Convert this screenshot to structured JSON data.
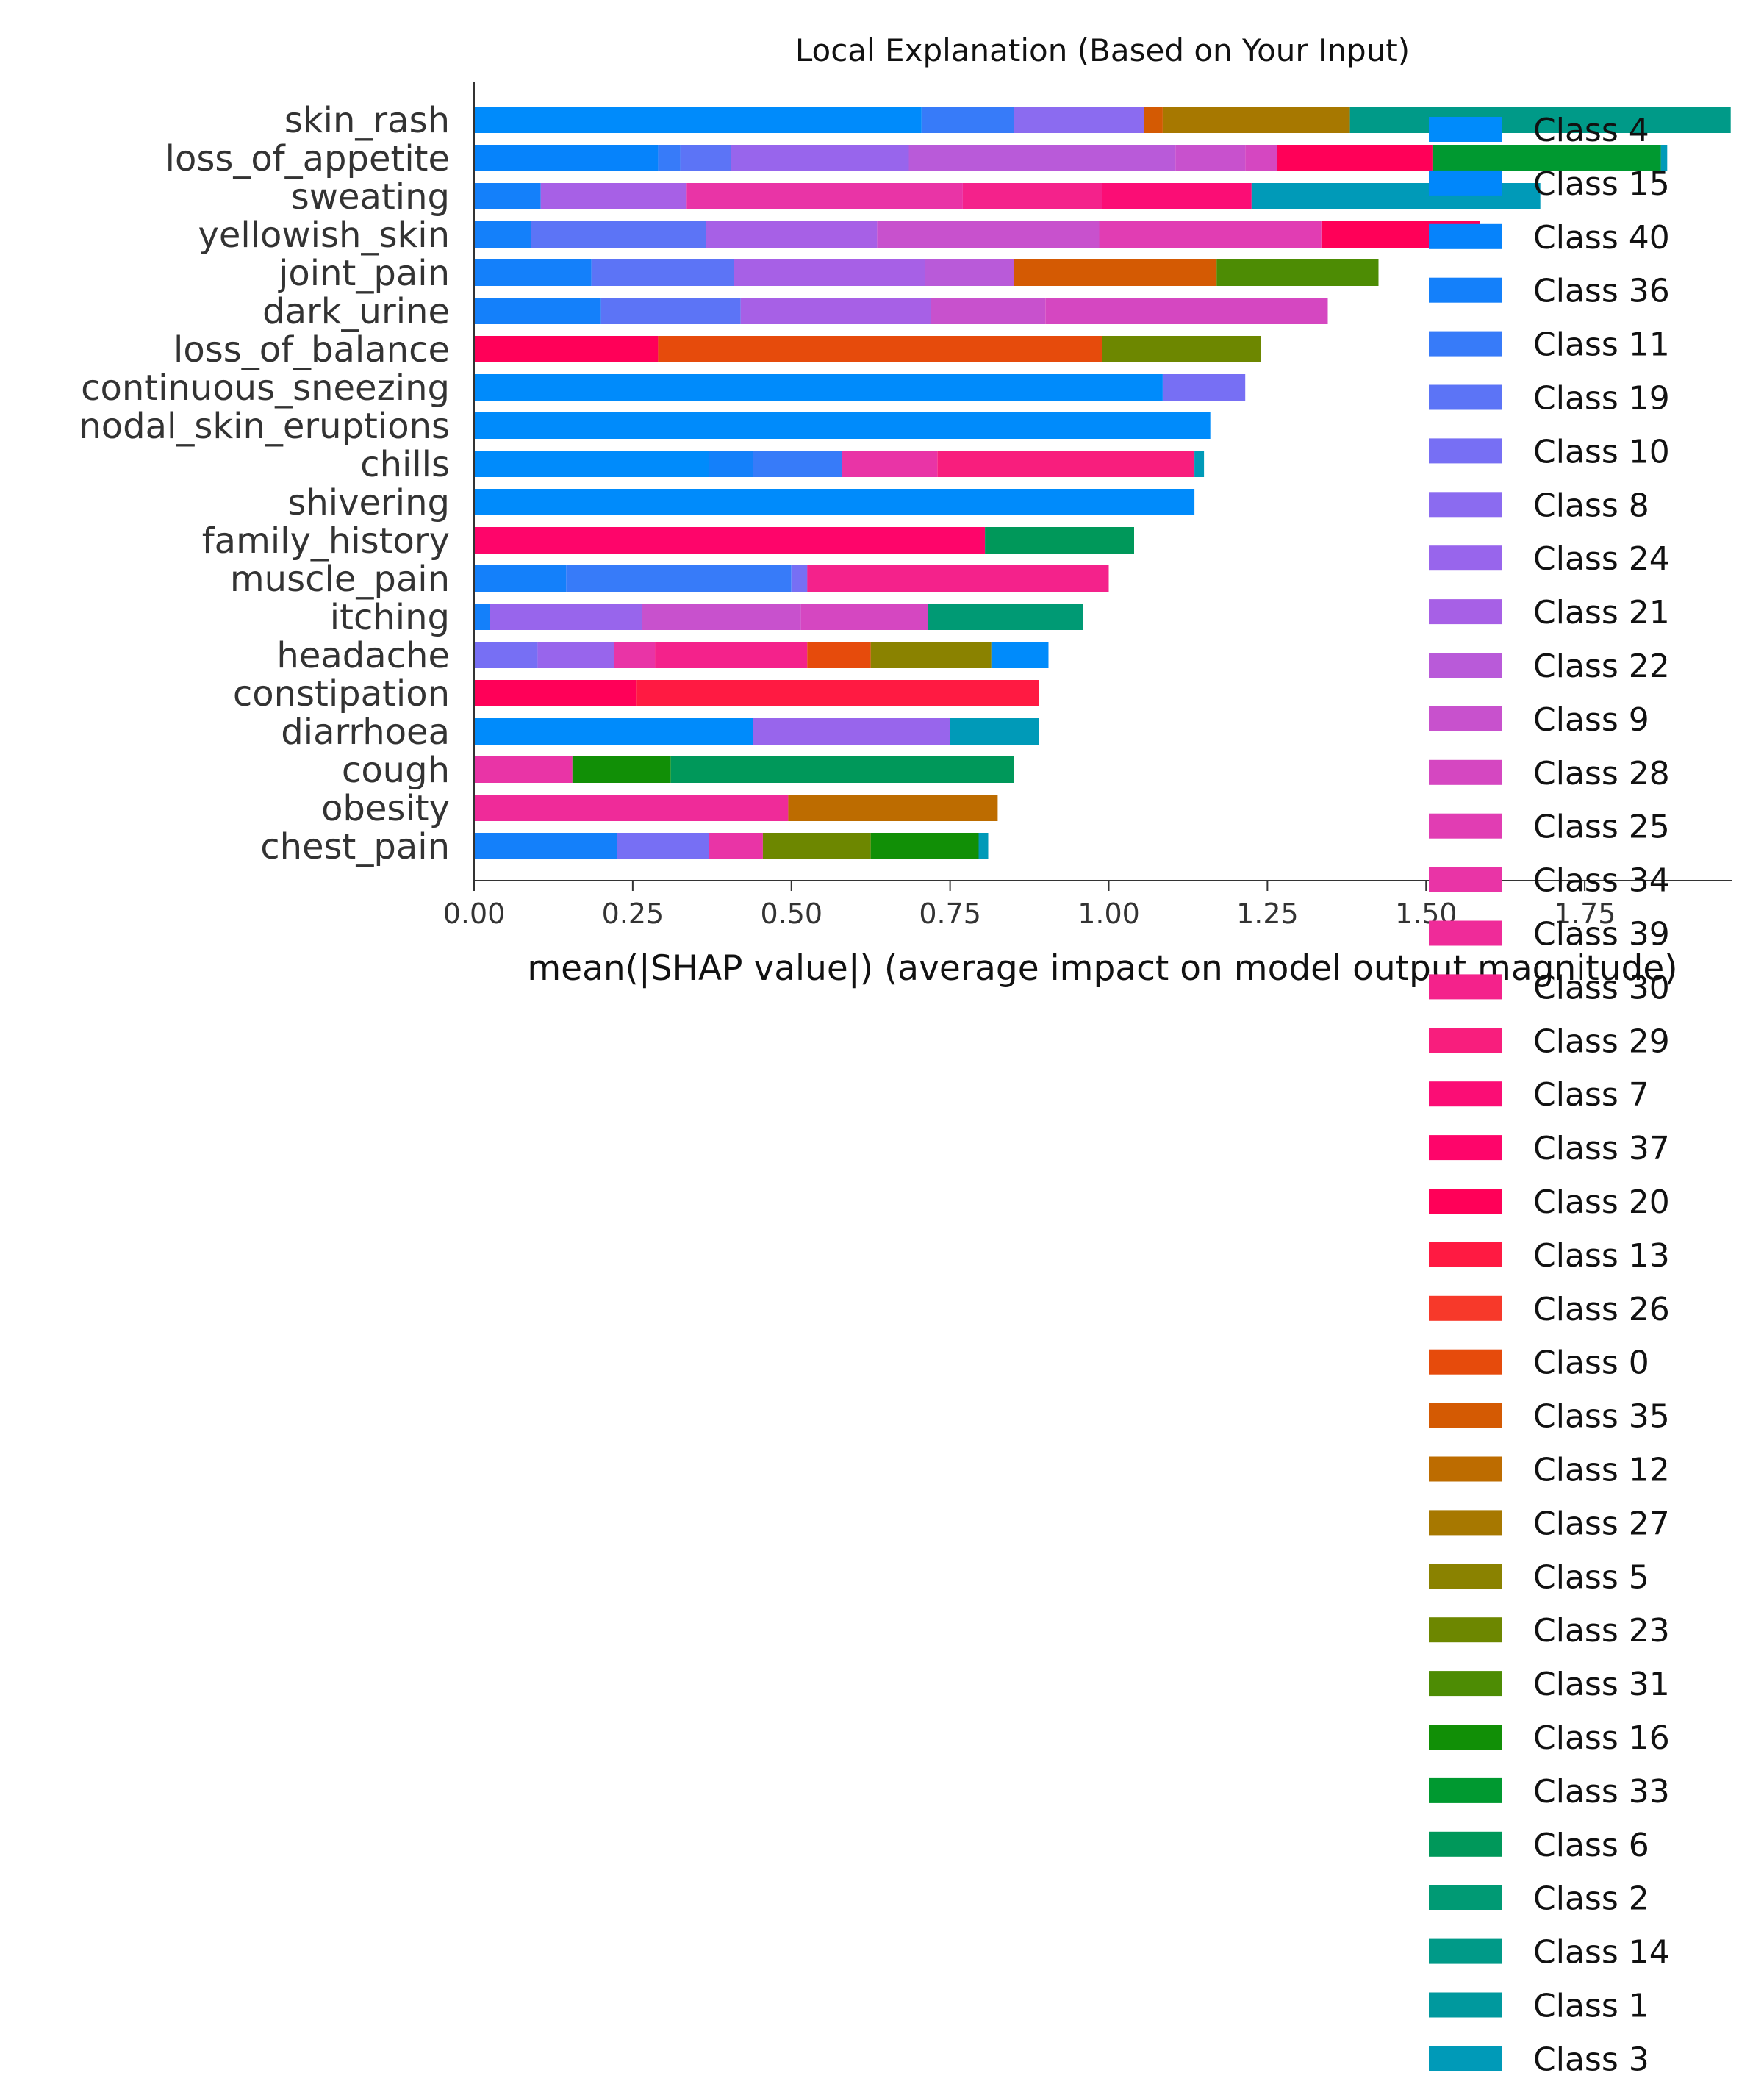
{
  "chart_data": {
    "type": "bar",
    "orientation": "horizontal",
    "stacked": true,
    "title": "Local Explanation (Based on Your Input)",
    "xlabel": "mean(|SHAP value|) (average impact on model output magnitude)",
    "ylabel": "",
    "xlim": [
      0,
      1.98
    ],
    "xticks": [
      "0.00",
      "0.25",
      "0.50",
      "0.75",
      "1.00",
      "1.25",
      "1.50",
      "1.75"
    ],
    "legend_position": "right",
    "grid": false,
    "legend": [
      {
        "name": "Class 4",
        "color": "#008bfb"
      },
      {
        "name": "Class 15",
        "color": "#0087fb"
      },
      {
        "name": "Class 40",
        "color": "#0683fb"
      },
      {
        "name": "Class 36",
        "color": "#1480fa"
      },
      {
        "name": "Class 11",
        "color": "#377bf9"
      },
      {
        "name": "Class 19",
        "color": "#5c74f6"
      },
      {
        "name": "Class 10",
        "color": "#776ff4"
      },
      {
        "name": "Class 8",
        "color": "#8b6bf0"
      },
      {
        "name": "Class 24",
        "color": "#9865ec"
      },
      {
        "name": "Class 21",
        "color": "#a760e6"
      },
      {
        "name": "Class 22",
        "color": "#b95ad9"
      },
      {
        "name": "Class 9",
        "color": "#c851cd"
      },
      {
        "name": "Class 28",
        "color": "#d547c1"
      },
      {
        "name": "Class 25",
        "color": "#e13db3"
      },
      {
        "name": "Class 34",
        "color": "#e934a6"
      },
      {
        "name": "Class 39",
        "color": "#ef2b99"
      },
      {
        "name": "Class 30",
        "color": "#f4228b"
      },
      {
        "name": "Class 29",
        "color": "#f81e7d"
      },
      {
        "name": "Class 7",
        "color": "#fb0d75"
      },
      {
        "name": "Class 37",
        "color": "#fe056a"
      },
      {
        "name": "Class 20",
        "color": "#ff0058"
      },
      {
        "name": "Class 13",
        "color": "#ff1a42"
      },
      {
        "name": "Class 26",
        "color": "#f7392a"
      },
      {
        "name": "Class 0",
        "color": "#e64b0c"
      },
      {
        "name": "Class 35",
        "color": "#d45a03"
      },
      {
        "name": "Class 12",
        "color": "#bd6c00"
      },
      {
        "name": "Class 27",
        "color": "#a77800"
      },
      {
        "name": "Class 5",
        "color": "#8a8200"
      },
      {
        "name": "Class 23",
        "color": "#6d8700"
      },
      {
        "name": "Class 31",
        "color": "#4d8c04"
      },
      {
        "name": "Class 16",
        "color": "#118f06"
      },
      {
        "name": "Class 33",
        "color": "#009930"
      },
      {
        "name": "Class 6",
        "color": "#00985a"
      },
      {
        "name": "Class 2",
        "color": "#009a74"
      },
      {
        "name": "Class 14",
        "color": "#009a88"
      },
      {
        "name": "Class 1",
        "color": "#00999e"
      },
      {
        "name": "Class 3",
        "color": "#009ab8"
      }
    ],
    "features": [
      {
        "name": "skin_rash",
        "segments": [
          {
            "class": "Class 4",
            "value": 0.705
          },
          {
            "class": "Class 11",
            "value": 0.145
          },
          {
            "class": "Class 8",
            "value": 0.205
          },
          {
            "class": "Class 35",
            "value": 0.03
          },
          {
            "class": "Class 27",
            "value": 0.295
          },
          {
            "class": "Class 14",
            "value": 0.6
          }
        ]
      },
      {
        "name": "loss_of_appetite",
        "segments": [
          {
            "class": "Class 40",
            "value": 0.29
          },
          {
            "class": "Class 11",
            "value": 0.035
          },
          {
            "class": "Class 19",
            "value": 0.08
          },
          {
            "class": "Class 24",
            "value": 0.28
          },
          {
            "class": "Class 22",
            "value": 0.42
          },
          {
            "class": "Class 9",
            "value": 0.11
          },
          {
            "class": "Class 28",
            "value": 0.05
          },
          {
            "class": "Class 20",
            "value": 0.245
          },
          {
            "class": "Class 33",
            "value": 0.36
          },
          {
            "class": "Class 3",
            "value": 0.01
          }
        ]
      },
      {
        "name": "sweating",
        "segments": [
          {
            "class": "Class 36",
            "value": 0.105
          },
          {
            "class": "Class 21",
            "value": 0.23
          },
          {
            "class": "Class 34",
            "value": 0.435
          },
          {
            "class": "Class 30",
            "value": 0.22
          },
          {
            "class": "Class 7",
            "value": 0.235
          },
          {
            "class": "Class 3",
            "value": 0.455
          }
        ]
      },
      {
        "name": "yellowish_skin",
        "segments": [
          {
            "class": "Class 36",
            "value": 0.09
          },
          {
            "class": "Class 19",
            "value": 0.275
          },
          {
            "class": "Class 21",
            "value": 0.27
          },
          {
            "class": "Class 9",
            "value": 0.35
          },
          {
            "class": "Class 25",
            "value": 0.35
          },
          {
            "class": "Class 20",
            "value": 0.25
          }
        ]
      },
      {
        "name": "joint_pain",
        "segments": [
          {
            "class": "Class 36",
            "value": 0.185
          },
          {
            "class": "Class 19",
            "value": 0.225
          },
          {
            "class": "Class 21",
            "value": 0.3
          },
          {
            "class": "Class 22",
            "value": 0.14
          },
          {
            "class": "Class 35",
            "value": 0.32
          },
          {
            "class": "Class 31",
            "value": 0.255
          }
        ]
      },
      {
        "name": "dark_urine",
        "segments": [
          {
            "class": "Class 36",
            "value": 0.2
          },
          {
            "class": "Class 19",
            "value": 0.22
          },
          {
            "class": "Class 21",
            "value": 0.3
          },
          {
            "class": "Class 9",
            "value": 0.18
          },
          {
            "class": "Class 28",
            "value": 0.445
          }
        ]
      },
      {
        "name": "loss_of_balance",
        "segments": [
          {
            "class": "Class 20",
            "value": 0.29
          },
          {
            "class": "Class 0",
            "value": 0.7
          },
          {
            "class": "Class 23",
            "value": 0.25
          }
        ]
      },
      {
        "name": "continuous_sneezing",
        "segments": [
          {
            "class": "Class 4",
            "value": 1.085
          },
          {
            "class": "Class 10",
            "value": 0.13
          }
        ]
      },
      {
        "name": "nodal_skin_eruptions",
        "segments": [
          {
            "class": "Class 4",
            "value": 1.16
          }
        ]
      },
      {
        "name": "chills",
        "segments": [
          {
            "class": "Class 4",
            "value": 0.37
          },
          {
            "class": "Class 36",
            "value": 0.07
          },
          {
            "class": "Class 11",
            "value": 0.14
          },
          {
            "class": "Class 34",
            "value": 0.15
          },
          {
            "class": "Class 29",
            "value": 0.405
          },
          {
            "class": "Class 3",
            "value": 0.015
          }
        ]
      },
      {
        "name": "shivering",
        "segments": [
          {
            "class": "Class 4",
            "value": 1.135
          }
        ]
      },
      {
        "name": "family_history",
        "segments": [
          {
            "class": "Class 37",
            "value": 0.805
          },
          {
            "class": "Class 6",
            "value": 0.235
          }
        ]
      },
      {
        "name": "muscle_pain",
        "segments": [
          {
            "class": "Class 36",
            "value": 0.145
          },
          {
            "class": "Class 11",
            "value": 0.355
          },
          {
            "class": "Class 10",
            "value": 0.025
          },
          {
            "class": "Class 30",
            "value": 0.475
          }
        ]
      },
      {
        "name": "itching",
        "segments": [
          {
            "class": "Class 36",
            "value": 0.025
          },
          {
            "class": "Class 24",
            "value": 0.24
          },
          {
            "class": "Class 9",
            "value": 0.25
          },
          {
            "class": "Class 28",
            "value": 0.2
          },
          {
            "class": "Class 2",
            "value": 0.245
          }
        ]
      },
      {
        "name": "headache",
        "segments": [
          {
            "class": "Class 10",
            "value": 0.1
          },
          {
            "class": "Class 24",
            "value": 0.12
          },
          {
            "class": "Class 34",
            "value": 0.065
          },
          {
            "class": "Class 30",
            "value": 0.24
          },
          {
            "class": "Class 0",
            "value": 0.1
          },
          {
            "class": "Class 5",
            "value": 0.19
          },
          {
            "class": "Class 4",
            "value": 0.09
          }
        ]
      },
      {
        "name": "constipation",
        "segments": [
          {
            "class": "Class 20",
            "value": 0.255
          },
          {
            "class": "Class 13",
            "value": 0.635
          }
        ]
      },
      {
        "name": "diarrhoea",
        "segments": [
          {
            "class": "Class 4",
            "value": 0.44
          },
          {
            "class": "Class 24",
            "value": 0.31
          },
          {
            "class": "Class 3",
            "value": 0.14
          }
        ]
      },
      {
        "name": "cough",
        "segments": [
          {
            "class": "Class 34",
            "value": 0.155
          },
          {
            "class": "Class 16",
            "value": 0.155
          },
          {
            "class": "Class 6",
            "value": 0.54
          }
        ]
      },
      {
        "name": "obesity",
        "segments": [
          {
            "class": "Class 39",
            "value": 0.495
          },
          {
            "class": "Class 12",
            "value": 0.33
          }
        ]
      },
      {
        "name": "chest_pain",
        "segments": [
          {
            "class": "Class 36",
            "value": 0.225
          },
          {
            "class": "Class 10",
            "value": 0.145
          },
          {
            "class": "Class 34",
            "value": 0.085
          },
          {
            "class": "Class 23",
            "value": 0.17
          },
          {
            "class": "Class 16",
            "value": 0.17
          },
          {
            "class": "Class 3",
            "value": 0.015
          }
        ]
      }
    ]
  }
}
